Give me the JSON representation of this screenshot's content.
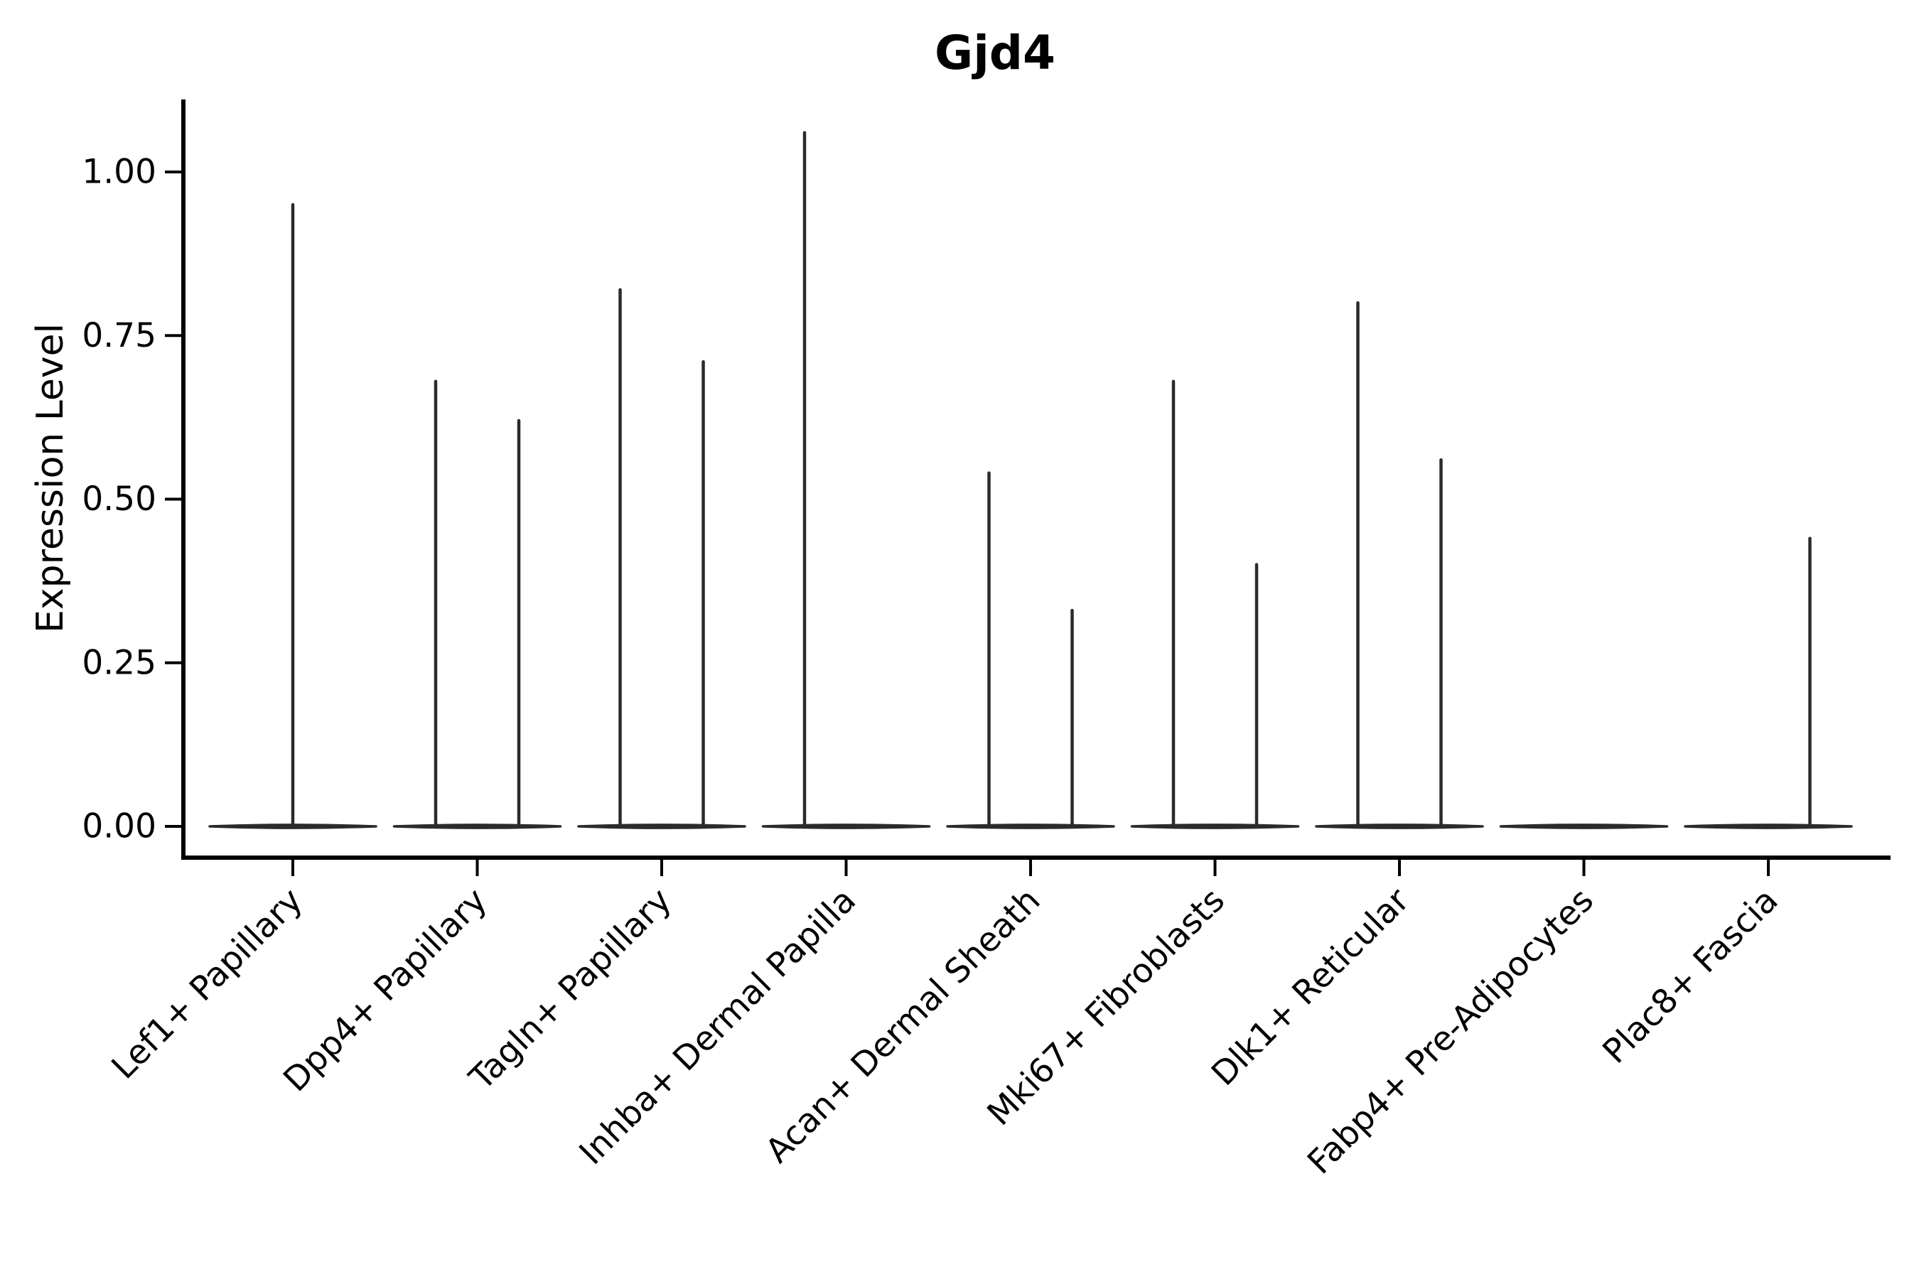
{
  "chart_data": {
    "type": "violin",
    "title": "Gjd4",
    "xlabel": "",
    "ylabel": "Expression Level",
    "ylim": [
      0,
      1.11
    ],
    "grid": false,
    "legend": null,
    "yticks": [
      {
        "value": 0.0,
        "label": "0.00"
      },
      {
        "value": 0.25,
        "label": "0.25"
      },
      {
        "value": 0.5,
        "label": "0.50"
      },
      {
        "value": 0.75,
        "label": "0.75"
      },
      {
        "value": 1.0,
        "label": "1.00"
      }
    ],
    "categories": [
      "Lef1+ Papillary",
      "Dpp4+ Papillary",
      "Tagln+ Papillary",
      "Inhba+ Dermal Papilla",
      "Acan+ Dermal Sheath",
      "Mki67+ Fibroblasts",
      "Dlk1+ Reticular",
      "Fabp4+ Pre-Adipocytes",
      "Plac8+ Fascia"
    ],
    "violins": [
      {
        "category": "Lef1+ Papillary",
        "baseline_value": 0,
        "spikes": [
          {
            "side": "center",
            "value": 0.95
          }
        ]
      },
      {
        "category": "Dpp4+ Papillary",
        "baseline_value": 0,
        "spikes": [
          {
            "side": "left",
            "value": 0.68
          },
          {
            "side": "right",
            "value": 0.62
          }
        ]
      },
      {
        "category": "Tagln+ Papillary",
        "baseline_value": 0,
        "spikes": [
          {
            "side": "left",
            "value": 0.82
          },
          {
            "side": "right",
            "value": 0.71
          }
        ]
      },
      {
        "category": "Inhba+ Dermal Papilla",
        "baseline_value": 0,
        "spikes": [
          {
            "side": "left",
            "value": 1.06
          }
        ]
      },
      {
        "category": "Acan+ Dermal Sheath",
        "baseline_value": 0,
        "spikes": [
          {
            "side": "left",
            "value": 0.54
          },
          {
            "side": "right",
            "value": 0.33
          }
        ]
      },
      {
        "category": "Mki67+ Fibroblasts",
        "baseline_value": 0,
        "spikes": [
          {
            "side": "left",
            "value": 0.68
          },
          {
            "side": "right",
            "value": 0.4
          }
        ]
      },
      {
        "category": "Dlk1+ Reticular",
        "baseline_value": 0,
        "spikes": [
          {
            "side": "left",
            "value": 0.8
          },
          {
            "side": "right",
            "value": 0.56
          }
        ]
      },
      {
        "category": "Fabp4+ Pre-Adipocytes",
        "baseline_value": 0,
        "spikes": []
      },
      {
        "category": "Plac8+ Fascia",
        "baseline_value": 0,
        "spikes": [
          {
            "side": "right",
            "value": 0.44
          }
        ]
      }
    ],
    "colors": {
      "violin_ink": "#2b2b2b",
      "axis": "#000000",
      "text": "#000000",
      "background": "#ffffff"
    }
  }
}
